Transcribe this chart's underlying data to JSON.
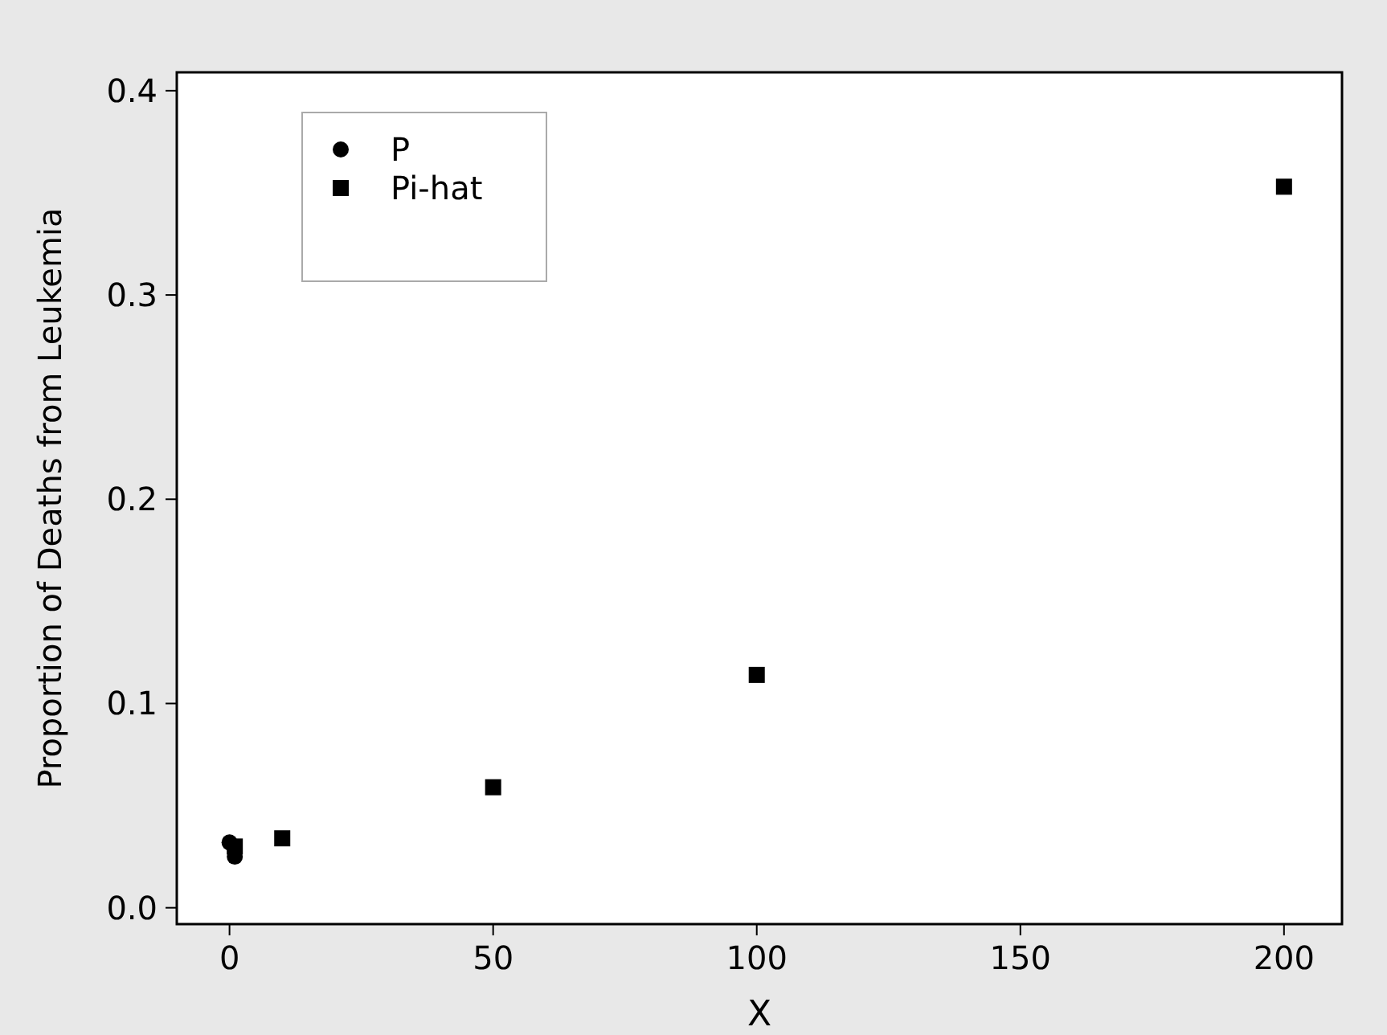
{
  "chart_data": {
    "type": "scatter",
    "xlabel": "X",
    "ylabel": "Proportion of Deaths from Leukemia",
    "x": [
      0,
      1,
      10,
      50,
      100,
      200
    ],
    "series": [
      {
        "name": "P",
        "color": "#000000",
        "marker": "circle",
        "values": [
          0.032,
          0.025,
          null,
          null,
          null,
          null
        ]
      },
      {
        "name": "Pi-hat",
        "color": "#000000",
        "marker": "square",
        "values": [
          null,
          0.03,
          0.034,
          0.059,
          0.114,
          0.353
        ]
      }
    ],
    "xlim": [
      -10,
      211
    ],
    "xticks": [
      0,
      50,
      100,
      150,
      200
    ],
    "ylim": [
      -0.008,
      0.409
    ],
    "yticks": [
      {
        "value": 0,
        "label": "0.0"
      },
      0.1,
      0.2,
      0.3,
      0.4
    ],
    "grid": false,
    "legend": "top left"
  }
}
